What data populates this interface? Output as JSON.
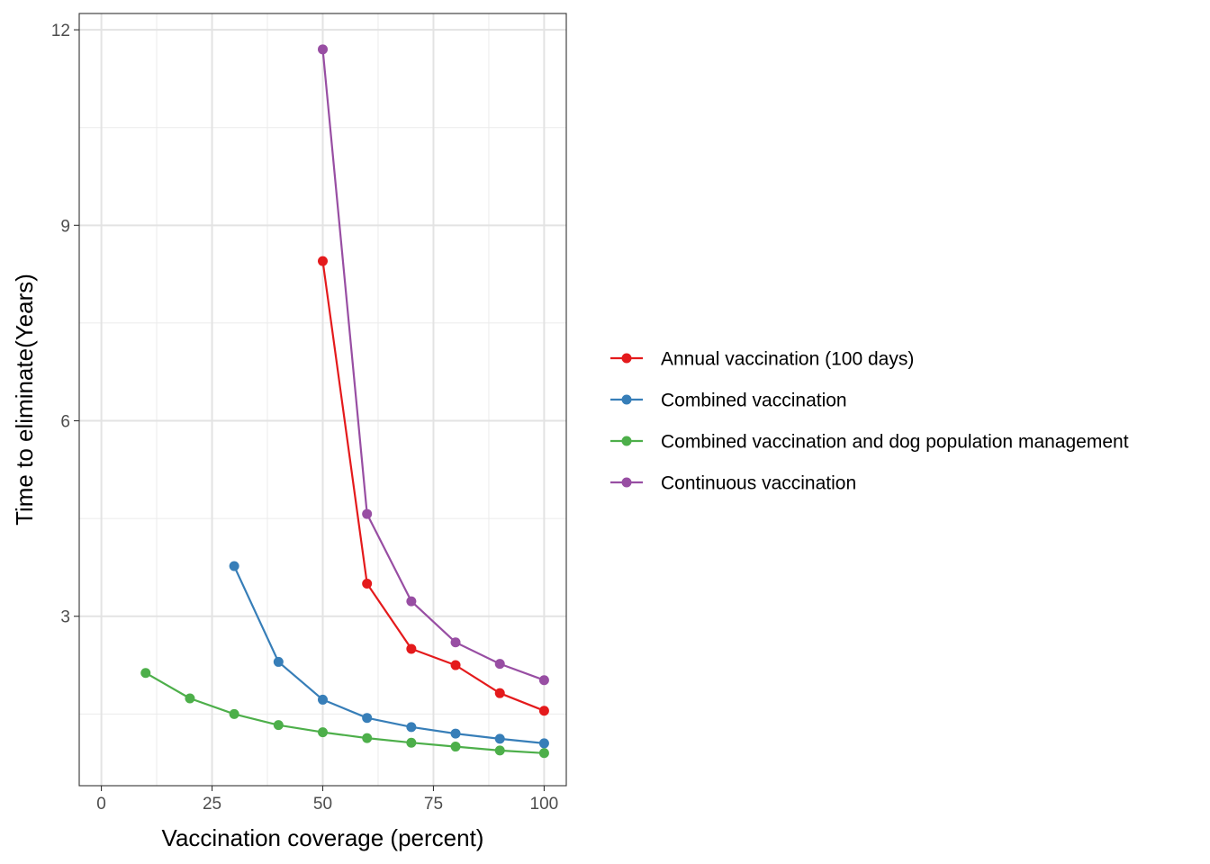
{
  "chart_data": {
    "type": "line",
    "xlabel": "Vaccination coverage (percent)",
    "ylabel": "Time to eliminate(Years)",
    "xlim": [
      -5,
      105
    ],
    "ylim": [
      0.4,
      12.25
    ],
    "x_ticks": [
      0,
      25,
      50,
      75,
      100
    ],
    "y_ticks": [
      3,
      6,
      9,
      12
    ],
    "x_tick_labels": [
      "0",
      "25",
      "50",
      "75",
      "100"
    ],
    "y_tick_labels": [
      "3",
      "6",
      "9",
      "12"
    ],
    "grid": true,
    "legend_position": "right",
    "series": [
      {
        "name": "Annual vaccination (100 days)",
        "color": "#e41a1c",
        "x": [
          50,
          60,
          70,
          80,
          90,
          100
        ],
        "y": [
          8.45,
          3.5,
          2.5,
          2.25,
          1.82,
          1.55
        ]
      },
      {
        "name": "Combined vaccination",
        "color": "#377eb8",
        "x": [
          30,
          40,
          50,
          60,
          70,
          80,
          90,
          100
        ],
        "y": [
          3.77,
          2.3,
          1.72,
          1.44,
          1.3,
          1.2,
          1.12,
          1.05
        ]
      },
      {
        "name": "Combined vaccination and dog population management",
        "color": "#4daf4a",
        "x": [
          10,
          20,
          30,
          40,
          50,
          60,
          70,
          80,
          90,
          100
        ],
        "y": [
          2.13,
          1.74,
          1.5,
          1.33,
          1.22,
          1.13,
          1.06,
          1.0,
          0.94,
          0.9
        ]
      },
      {
        "name": "Continuous vaccination",
        "color": "#984ea3",
        "x": [
          50,
          60,
          70,
          80,
          90,
          100
        ],
        "y": [
          11.7,
          4.57,
          3.23,
          2.6,
          2.27,
          2.02
        ]
      }
    ]
  }
}
